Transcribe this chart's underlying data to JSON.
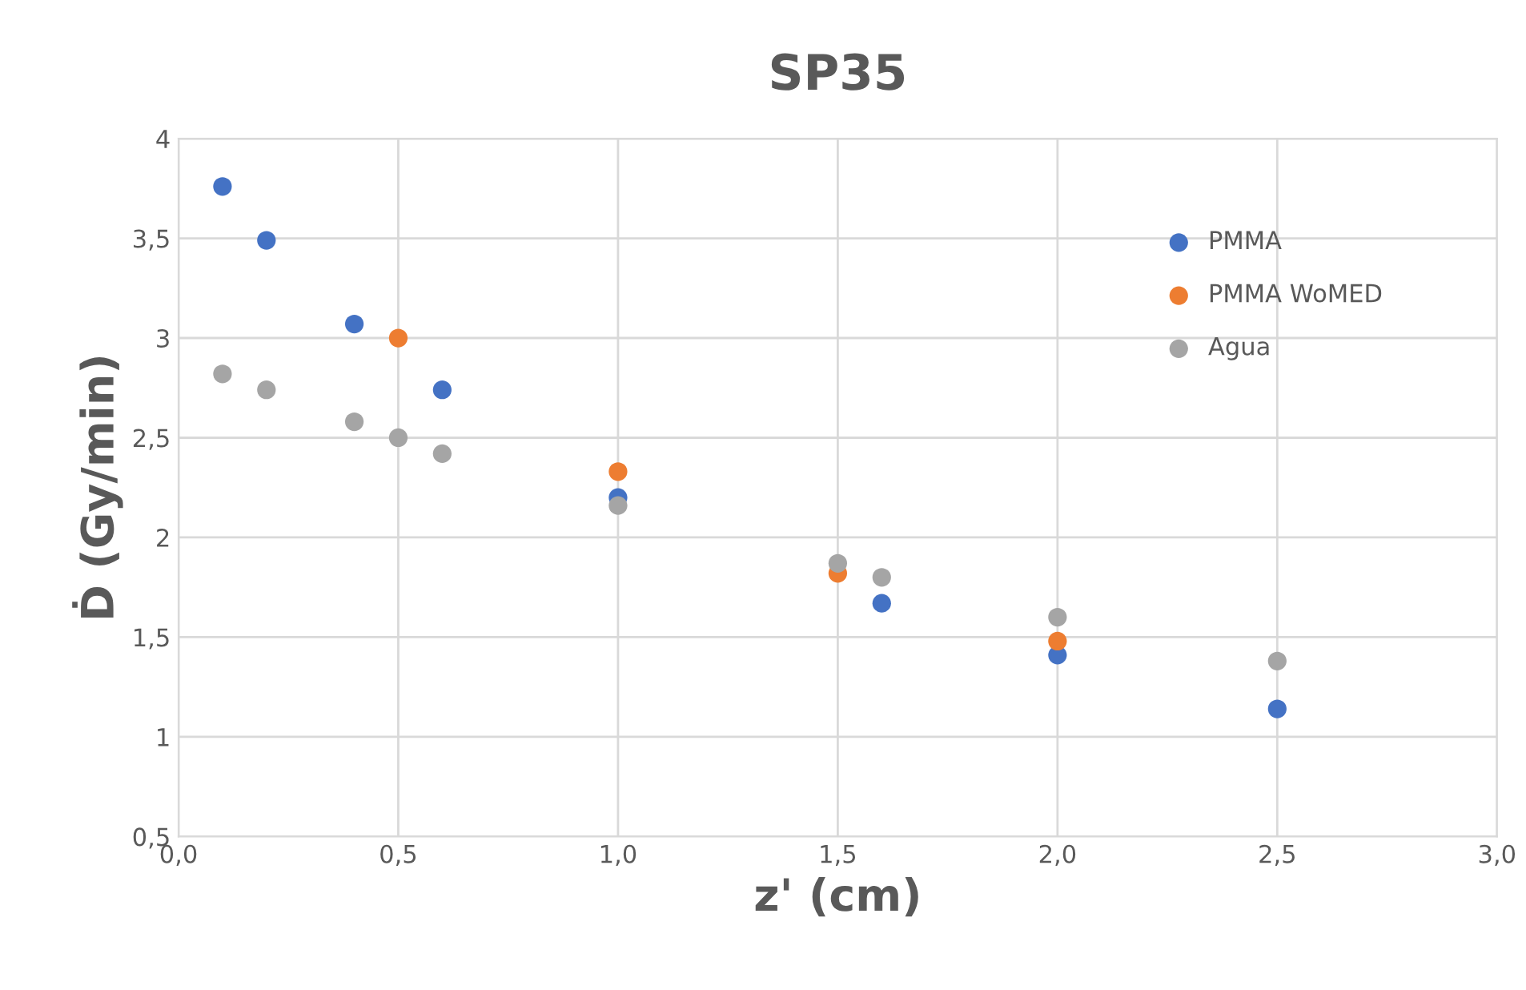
{
  "chart_data": {
    "type": "scatter",
    "title": "SP35",
    "xlabel": "z' (cm)",
    "ylabel": "Ḋ (Gy/min)",
    "xlim": [
      0,
      3
    ],
    "ylim": [
      0.5,
      4
    ],
    "xticks": [
      {
        "value": 0,
        "label": "0,0"
      },
      {
        "value": 0.5,
        "label": "0,5"
      },
      {
        "value": 1,
        "label": "1,0"
      },
      {
        "value": 1.5,
        "label": "1,5"
      },
      {
        "value": 2,
        "label": "2,0"
      },
      {
        "value": 2.5,
        "label": "2,5"
      },
      {
        "value": 3,
        "label": "3,0"
      }
    ],
    "yticks": [
      {
        "value": 0.5,
        "label": "0,5"
      },
      1,
      {
        "value": 1.5,
        "label": "1,5"
      },
      2,
      {
        "value": 2.5,
        "label": "2,5"
      },
      3,
      {
        "value": 3.5,
        "label": "3,5"
      },
      4
    ],
    "grid": true,
    "legend": "top right",
    "marker": "circle",
    "series": [
      {
        "name": "PMMA",
        "color": "#4472c4",
        "x": [
          0.1,
          0.2,
          0.4,
          0.6,
          1.0,
          1.6,
          2.0,
          2.5
        ],
        "values": [
          3.76,
          3.49,
          3.07,
          2.74,
          2.2,
          1.67,
          1.41,
          1.14
        ]
      },
      {
        "name": "PMMA WoMED",
        "color": "#ed7d31",
        "x": [
          0.5,
          1.0,
          1.5,
          2.0
        ],
        "values": [
          3.0,
          2.33,
          1.82,
          1.48
        ]
      },
      {
        "name": "Agua",
        "color": "#a5a5a5",
        "x": [
          0.1,
          0.2,
          0.4,
          0.5,
          0.6,
          1.0,
          1.5,
          1.6,
          2.0,
          2.5
        ],
        "values": [
          2.82,
          2.74,
          2.58,
          2.5,
          2.42,
          2.16,
          1.87,
          1.8,
          1.6,
          1.38
        ]
      }
    ]
  }
}
